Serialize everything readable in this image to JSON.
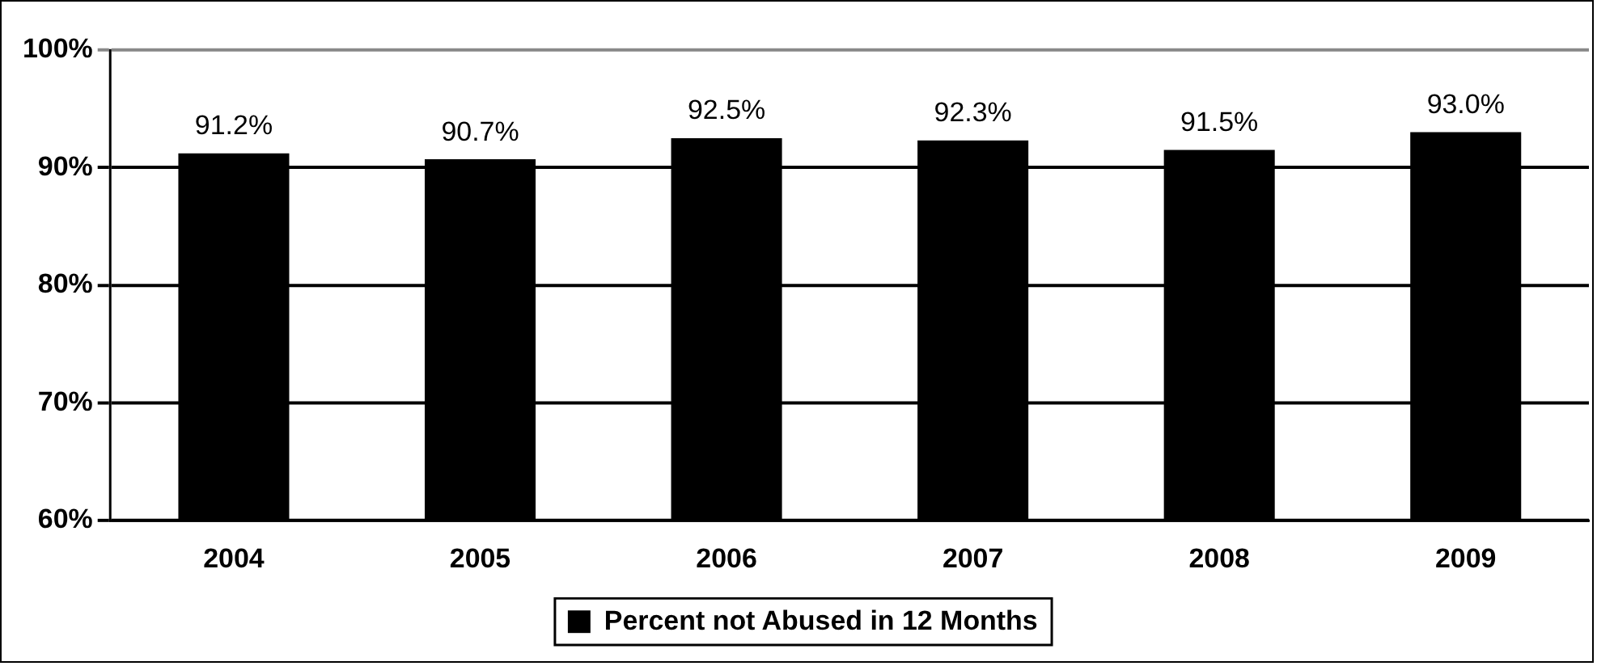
{
  "chart_data": {
    "type": "bar",
    "categories": [
      "2004",
      "2005",
      "2006",
      "2007",
      "2008",
      "2009"
    ],
    "series": [
      {
        "name": "Percent not Abused in 12 Months",
        "color": "#000000",
        "values": [
          91.2,
          90.7,
          92.5,
          92.3,
          91.5,
          93.0
        ],
        "value_labels": [
          "91.2%",
          "90.7%",
          "92.5%",
          "92.3%",
          "91.5%",
          "93.0%"
        ]
      }
    ],
    "ylim": [
      60,
      100
    ],
    "yticks": [
      {
        "value": 60,
        "label": "60%"
      },
      {
        "value": 70,
        "label": "70%"
      },
      {
        "value": 80,
        "label": "80%"
      },
      {
        "value": 90,
        "label": "90%"
      },
      {
        "value": 100,
        "label": "100%"
      }
    ],
    "grid": "y",
    "legend": "bottom"
  }
}
